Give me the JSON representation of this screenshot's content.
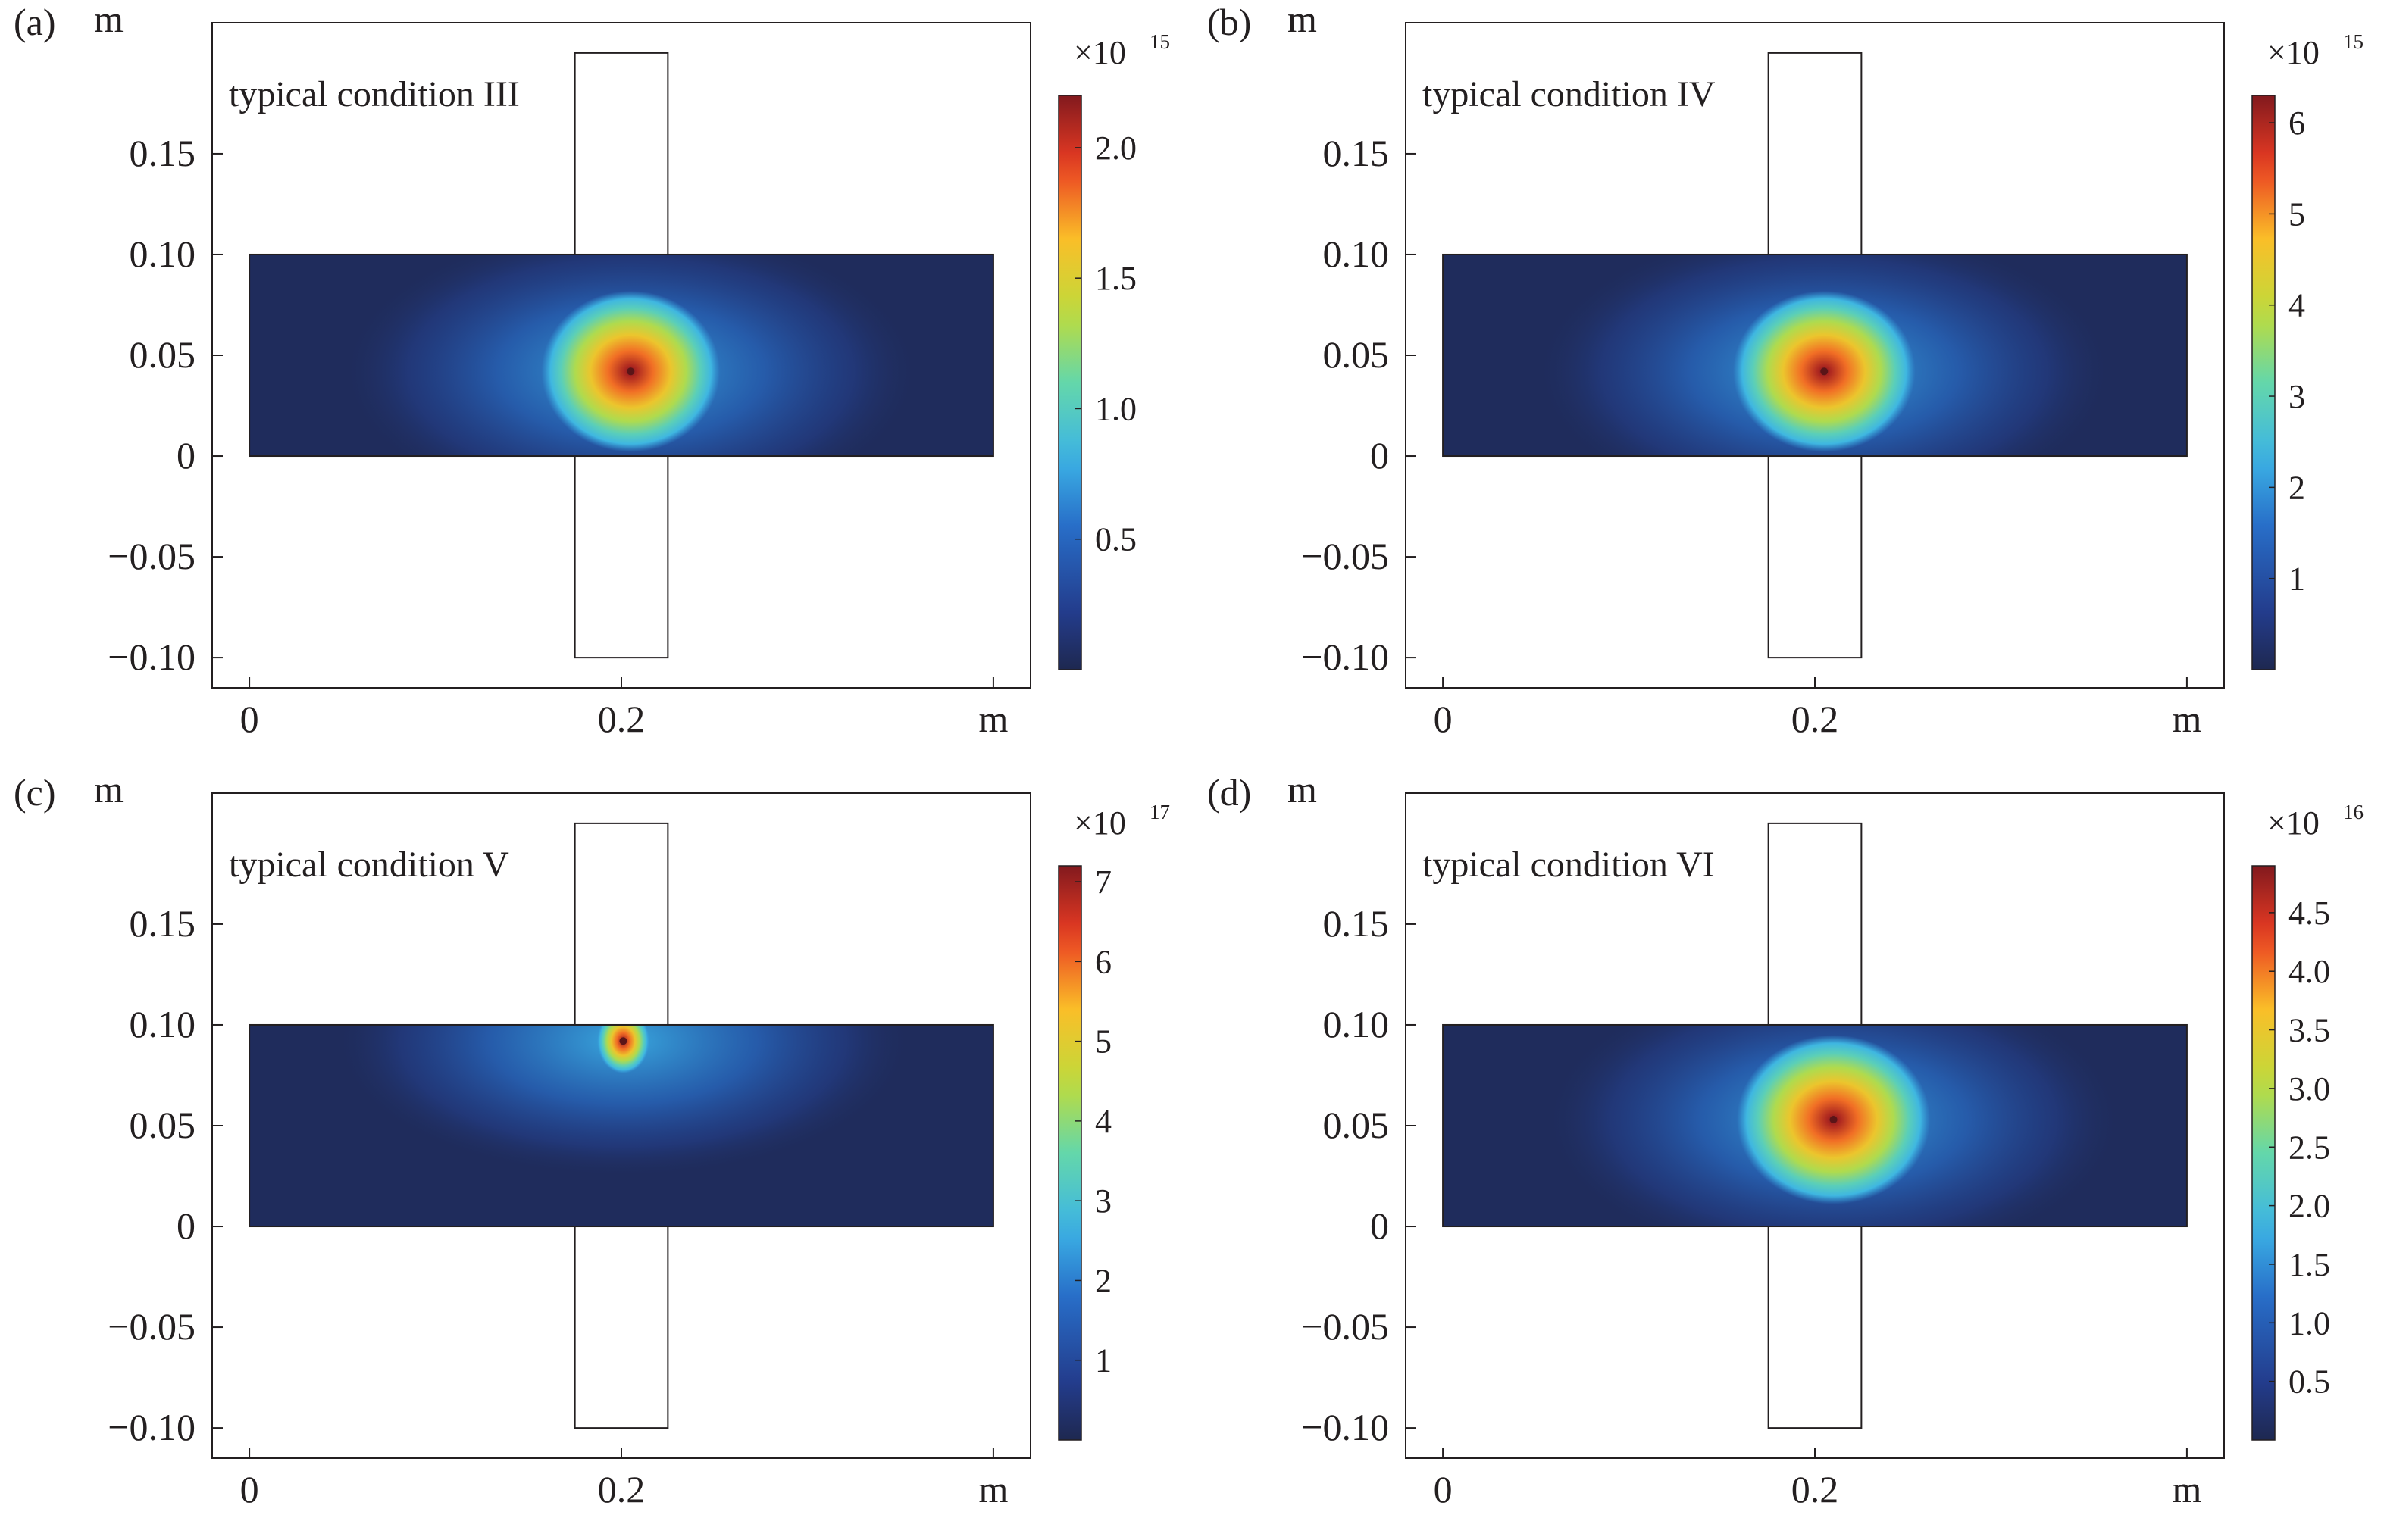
{
  "chart_data": [
    {
      "type": "heatmap",
      "panel_label": "(a)",
      "annotation": "typical condition III",
      "x_unit": "m",
      "y_unit": "m",
      "x_ticks": [
        "0",
        "0.2",
        "m"
      ],
      "x_tick_values": [
        0,
        0.2,
        0.4
      ],
      "y_ticks": [
        "0.15",
        "0.10",
        "0.05",
        "0",
        "−0.05",
        "−0.10"
      ],
      "y_tick_values": [
        0.15,
        0.1,
        0.05,
        0,
        -0.05,
        -0.1
      ],
      "xlim": [
        -0.02,
        0.42
      ],
      "ylim": [
        -0.115,
        0.215
      ],
      "colorbar": {
        "multiplier": "×10",
        "exponent": "15",
        "ticks": [
          "0.5",
          "1.0",
          "1.5",
          "2.0"
        ],
        "tick_values": [
          0.5,
          1.0,
          1.5,
          2.0
        ],
        "range": [
          0,
          2.2
        ],
        "colormap": "jet"
      },
      "plate": {
        "x": [
          0,
          0.4
        ],
        "y": [
          0,
          0.1
        ]
      },
      "electrode": {
        "x": [
          0.175,
          0.225
        ],
        "y": [
          -0.1,
          0.2
        ]
      },
      "peak": {
        "x": 0.205,
        "y": 0.042,
        "value": 2.2
      },
      "spot_radius": [
        0.048,
        0.04
      ],
      "halo_radius": [
        0.16,
        0.075
      ]
    },
    {
      "type": "heatmap",
      "panel_label": "(b)",
      "annotation": "typical condition IV",
      "x_unit": "m",
      "y_unit": "m",
      "x_ticks": [
        "0",
        "0.2",
        "m"
      ],
      "x_tick_values": [
        0,
        0.2,
        0.4
      ],
      "y_ticks": [
        "0.15",
        "0.10",
        "0.05",
        "0",
        "−0.05",
        "−0.10"
      ],
      "y_tick_values": [
        0.15,
        0.1,
        0.05,
        0,
        -0.05,
        -0.1
      ],
      "xlim": [
        -0.02,
        0.42
      ],
      "ylim": [
        -0.115,
        0.215
      ],
      "colorbar": {
        "multiplier": "×10",
        "exponent": "15",
        "ticks": [
          "1",
          "2",
          "3",
          "4",
          "5",
          "6"
        ],
        "tick_values": [
          1,
          2,
          3,
          4,
          5,
          6
        ],
        "range": [
          0,
          6.3
        ],
        "colormap": "jet"
      },
      "plate": {
        "x": [
          0,
          0.4
        ],
        "y": [
          0,
          0.1
        ]
      },
      "electrode": {
        "x": [
          0.175,
          0.225
        ],
        "y": [
          -0.1,
          0.2
        ]
      },
      "peak": {
        "x": 0.205,
        "y": 0.042,
        "value": 6.3
      },
      "spot_radius": [
        0.049,
        0.04
      ],
      "halo_radius": [
        0.16,
        0.075
      ]
    },
    {
      "type": "heatmap",
      "panel_label": "(c)",
      "annotation": "typical condition V",
      "x_unit": "m",
      "y_unit": "m",
      "x_ticks": [
        "0",
        "0.2",
        "m"
      ],
      "x_tick_values": [
        0,
        0.2,
        0.4
      ],
      "y_ticks": [
        "0.15",
        "0.10",
        "0.05",
        "0",
        "−0.05",
        "−0.10"
      ],
      "y_tick_values": [
        0.15,
        0.1,
        0.05,
        0,
        -0.05,
        -0.1
      ],
      "xlim": [
        -0.02,
        0.42
      ],
      "ylim": [
        -0.115,
        0.215
      ],
      "colorbar": {
        "multiplier": "×10",
        "exponent": "17",
        "ticks": [
          "1",
          "2",
          "3",
          "4",
          "5",
          "6",
          "7"
        ],
        "tick_values": [
          1,
          2,
          3,
          4,
          5,
          6,
          7
        ],
        "range": [
          0,
          7.2
        ],
        "colormap": "jet"
      },
      "plate": {
        "x": [
          0,
          0.4
        ],
        "y": [
          0,
          0.1
        ]
      },
      "electrode": {
        "x": [
          0.175,
          0.225
        ],
        "y": [
          -0.1,
          0.2
        ]
      },
      "peak": {
        "x": 0.201,
        "y": 0.092,
        "value": 7.2
      },
      "spot_radius": [
        0.014,
        0.016
      ],
      "halo_radius": [
        0.16,
        0.07
      ]
    },
    {
      "type": "heatmap",
      "panel_label": "(d)",
      "annotation": "typical condition VI",
      "x_unit": "m",
      "y_unit": "m",
      "x_ticks": [
        "0",
        "0.2",
        "m"
      ],
      "x_tick_values": [
        0,
        0.2,
        0.4
      ],
      "y_ticks": [
        "0.15",
        "0.10",
        "0.05",
        "0",
        "−0.05",
        "−0.10"
      ],
      "y_tick_values": [
        0.15,
        0.1,
        0.05,
        0,
        -0.05,
        -0.1
      ],
      "xlim": [
        -0.02,
        0.42
      ],
      "ylim": [
        -0.115,
        0.215
      ],
      "colorbar": {
        "multiplier": "×10",
        "exponent": "16",
        "ticks": [
          "0.5",
          "1.0",
          "1.5",
          "2.0",
          "2.5",
          "3.0",
          "3.5",
          "4.0",
          "4.5"
        ],
        "tick_values": [
          0.5,
          1.0,
          1.5,
          2.0,
          2.5,
          3.0,
          3.5,
          4.0,
          4.5
        ],
        "range": [
          0,
          4.9
        ],
        "colormap": "jet"
      },
      "plate": {
        "x": [
          0,
          0.4
        ],
        "y": [
          0,
          0.1
        ]
      },
      "electrode": {
        "x": [
          0.175,
          0.225
        ],
        "y": [
          -0.1,
          0.2
        ]
      },
      "peak": {
        "x": 0.21,
        "y": 0.053,
        "value": 4.9
      },
      "spot_radius": [
        0.052,
        0.042
      ],
      "halo_radius": [
        0.16,
        0.075
      ]
    }
  ]
}
